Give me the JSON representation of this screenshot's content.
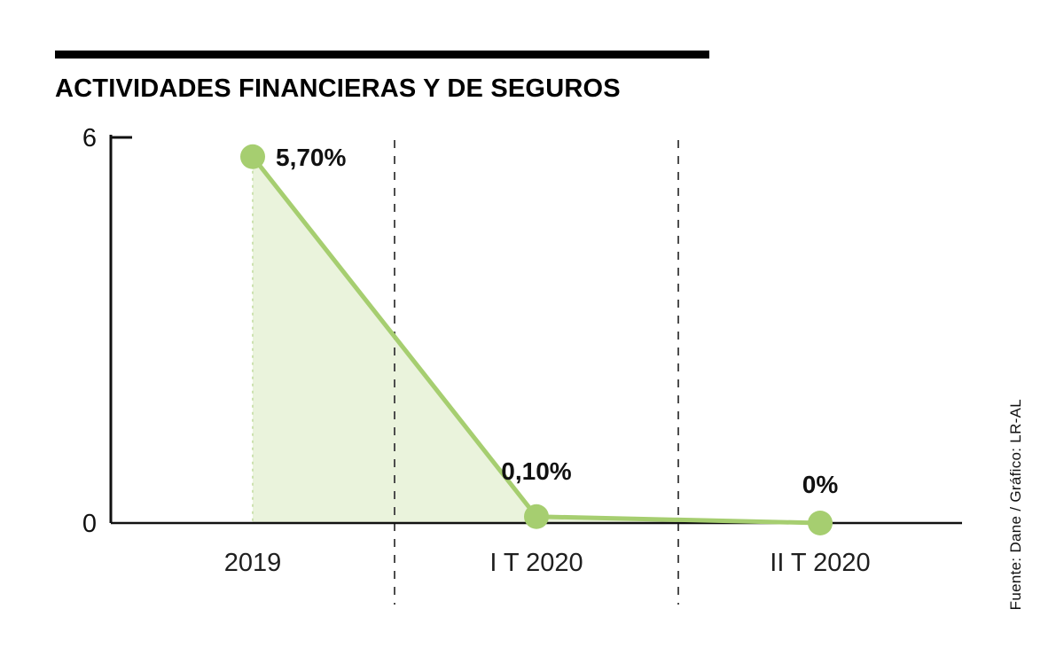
{
  "source_credit": "Fuente: Dane / Gráfico: LR-AL",
  "chart_data": {
    "type": "area",
    "title": "ACTIVIDADES FINANCIERAS Y DE SEGUROS",
    "categories": [
      "2019",
      "I T 2020",
      "II T 2020"
    ],
    "values": [
      5.7,
      0.1,
      0
    ],
    "value_labels": [
      "5,70%",
      "0,10%",
      "0%"
    ],
    "xlabel": "",
    "ylabel": "",
    "ylim": [
      0,
      6
    ],
    "yticks": [
      6,
      0
    ],
    "grid": "dashed vertical separators between categories",
    "legend": "none",
    "colors": {
      "line": "#a6ce70",
      "fill": "#eaf3dc",
      "fill_edge": "#cde2b0",
      "point": "#a6ce70",
      "axis": "#111111",
      "separator": "#4d4d4d",
      "text": "#111111",
      "tick_text": "#1f1f1f"
    }
  }
}
